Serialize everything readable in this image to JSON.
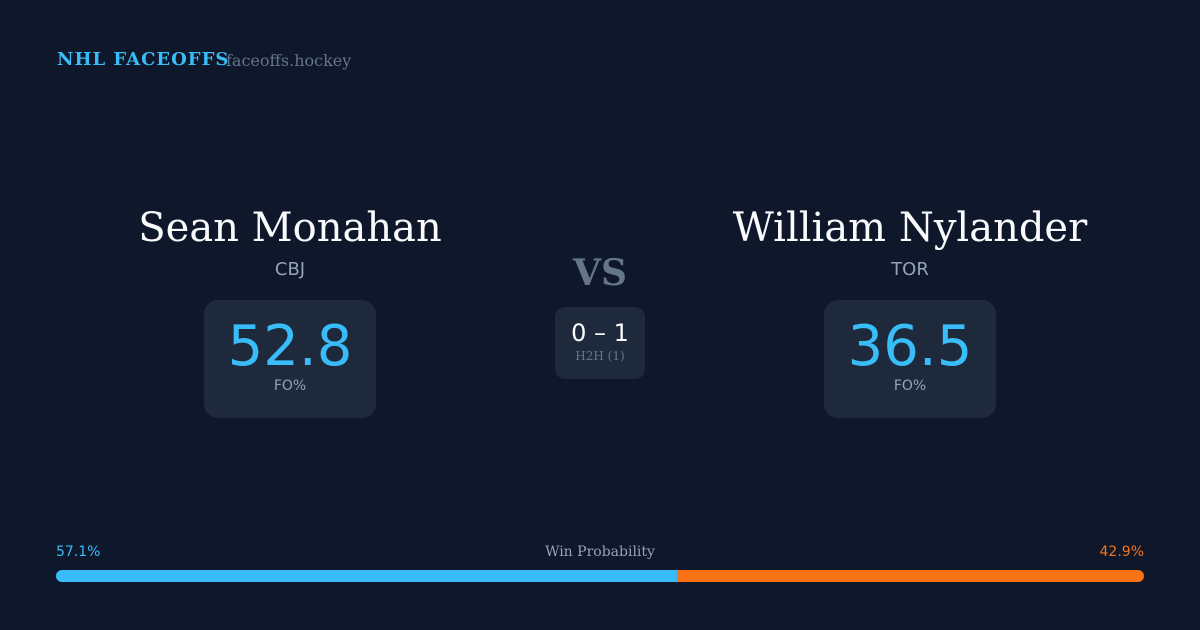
{
  "header": {
    "brand": "NHL FACEOFFS",
    "site": "faceoffs.hockey"
  },
  "left": {
    "name": "Sean Monahan",
    "team": "CBJ",
    "value": "52.8",
    "label": "FO%"
  },
  "right": {
    "name": "William Nylander",
    "team": "TOR",
    "value": "36.5",
    "label": "FO%"
  },
  "center": {
    "vs": "VS",
    "score": "0 – 1",
    "h2h": "H2H (1)"
  },
  "probability": {
    "title": "Win Probability",
    "left_label": "57.1%",
    "right_label": "42.9%",
    "left": 57.1,
    "right": 42.9,
    "left_color": "#38bdf8",
    "right_color": "#f97316"
  }
}
